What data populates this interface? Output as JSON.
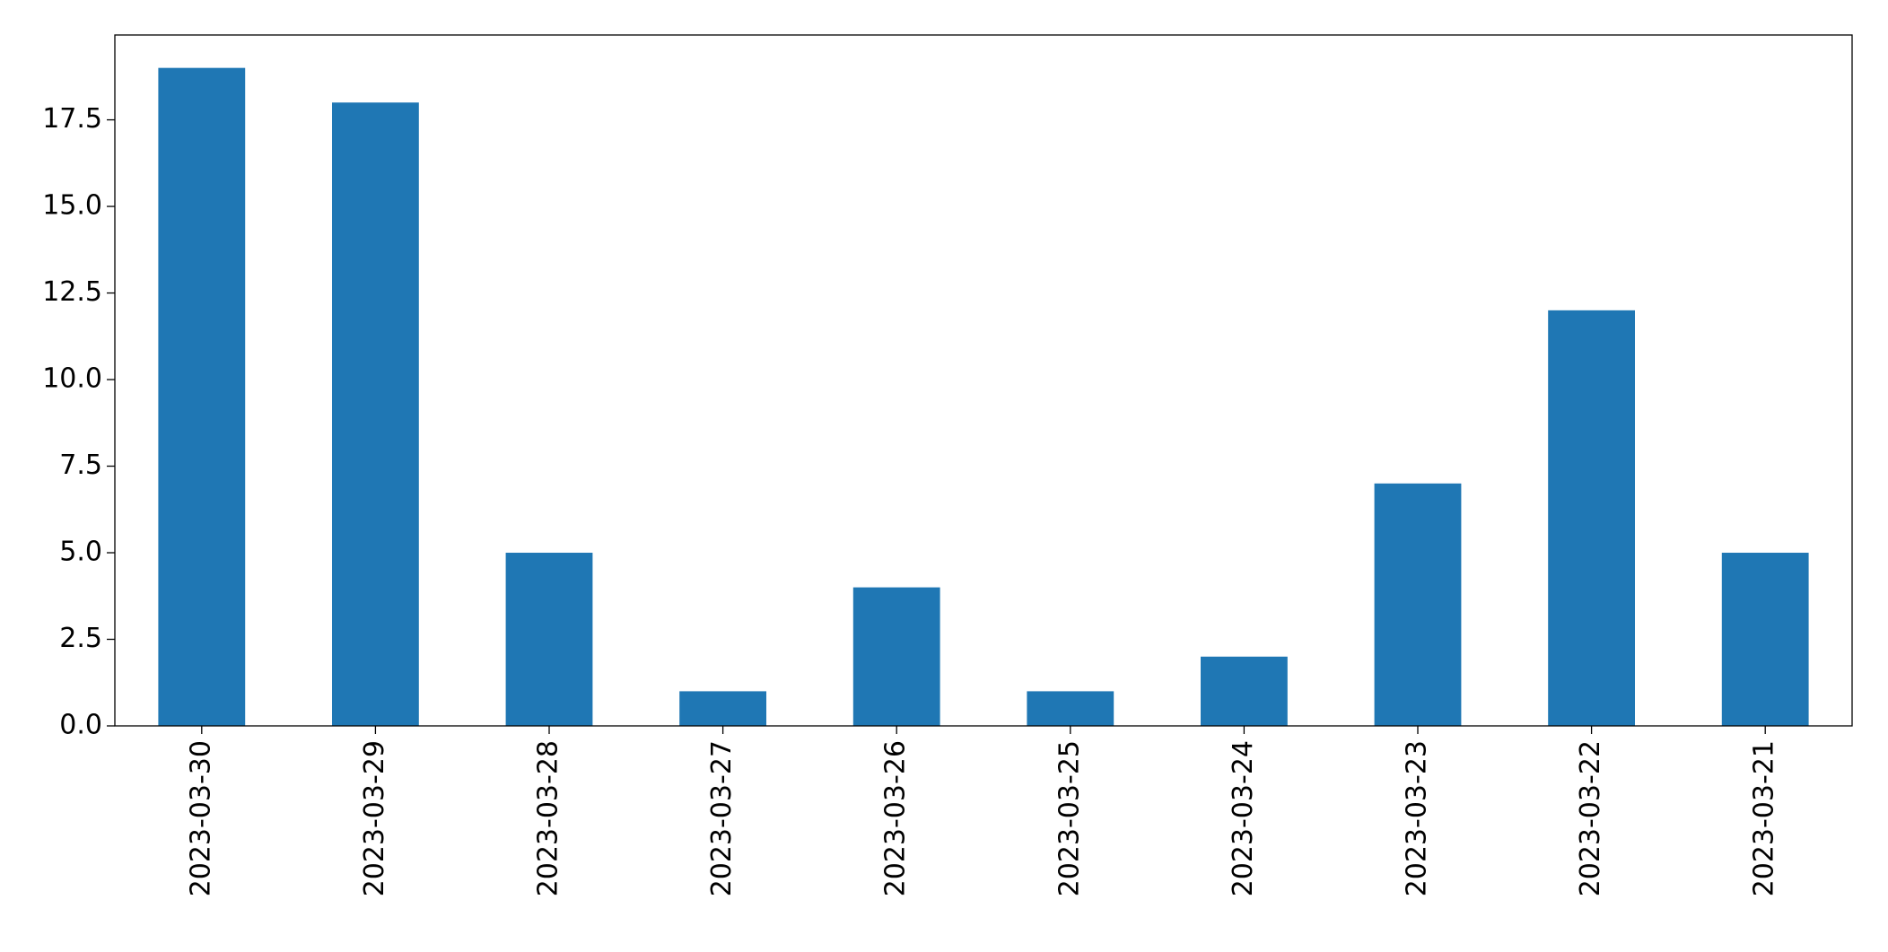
{
  "chart_data": {
    "type": "bar",
    "categories": [
      "2023-03-30",
      "2023-03-29",
      "2023-03-28",
      "2023-03-27",
      "2023-03-26",
      "2023-03-25",
      "2023-03-24",
      "2023-03-23",
      "2023-03-22",
      "2023-03-21"
    ],
    "values": [
      19,
      18,
      5,
      1,
      4,
      1,
      2,
      7,
      12,
      5
    ],
    "color": "#1f77b4",
    "ylim": [
      0,
      19.95
    ],
    "yticks": [
      {
        "value": 0,
        "label": "0.0"
      },
      {
        "value": 2.5,
        "label": "2.5"
      },
      {
        "value": 5,
        "label": "5.0"
      },
      {
        "value": 7.5,
        "label": "7.5"
      },
      {
        "value": 10,
        "label": "10.0"
      },
      {
        "value": 12.5,
        "label": "12.5"
      },
      {
        "value": 15,
        "label": "15.0"
      },
      {
        "value": 17.5,
        "label": "17.5"
      }
    ],
    "grid": false
  }
}
